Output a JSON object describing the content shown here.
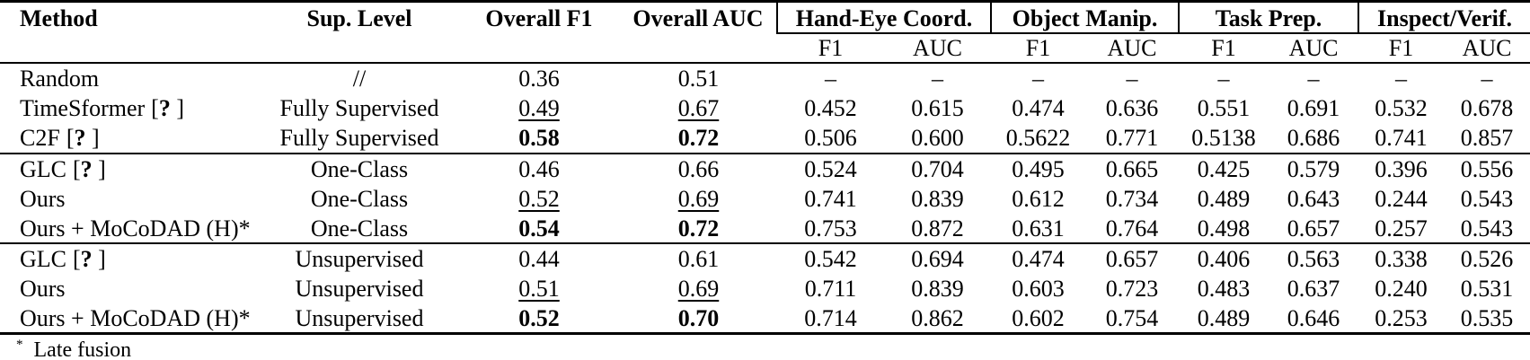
{
  "page": {
    "background_color": "#ffffff",
    "text_color": "#000000",
    "rule_color": "#000000"
  },
  "table": {
    "headers": {
      "method": "Method",
      "sup_level": "Sup. Level",
      "overall_f1": "Overall F1",
      "overall_auc": "Overall AUC"
    },
    "groups": [
      {
        "label": "Hand-Eye Coord."
      },
      {
        "label": "Object Manip."
      },
      {
        "label": "Task Prep."
      },
      {
        "label": "Inspect/Verif."
      }
    ],
    "subheaders": [
      "F1",
      "AUC",
      "F1",
      "AUC",
      "F1",
      "AUC",
      "F1",
      "AUC"
    ],
    "cite_marker": "?",
    "sections": [
      {
        "rows": [
          {
            "method": "Random",
            "cite": false,
            "sup_level": "//",
            "overall_f1": "0.36",
            "of1_style": "normal",
            "overall_auc": "0.51",
            "oauc_style": "normal",
            "values": [
              "–",
              "–",
              "–",
              "–",
              "–",
              "–",
              "–",
              "–"
            ]
          },
          {
            "method": "TimeSformer",
            "cite": true,
            "sup_level": "Fully Supervised",
            "overall_f1": "0.49",
            "of1_style": "underline",
            "overall_auc": "0.67",
            "oauc_style": "underline",
            "values": [
              "0.452",
              "0.615",
              "0.474",
              "0.636",
              "0.551",
              "0.691",
              "0.532",
              "0.678"
            ]
          },
          {
            "method": "C2F",
            "cite": true,
            "sup_level": "Fully Supervised",
            "overall_f1": "0.58",
            "of1_style": "bold",
            "overall_auc": "0.72",
            "oauc_style": "bold",
            "values": [
              "0.506",
              "0.600",
              "0.5622",
              "0.771",
              "0.5138",
              "0.686",
              "0.741",
              "0.857"
            ]
          }
        ]
      },
      {
        "rows": [
          {
            "method": "GLC",
            "cite": true,
            "sup_level": "One-Class",
            "overall_f1": "0.46",
            "of1_style": "normal",
            "overall_auc": "0.66",
            "oauc_style": "normal",
            "values": [
              "0.524",
              "0.704",
              "0.495",
              "0.665",
              "0.425",
              "0.579",
              "0.396",
              "0.556"
            ]
          },
          {
            "method": "Ours",
            "cite": false,
            "sup_level": "One-Class",
            "overall_f1": "0.52",
            "of1_style": "underline",
            "overall_auc": "0.69",
            "oauc_style": "underline",
            "values": [
              "0.741",
              "0.839",
              "0.612",
              "0.734",
              "0.489",
              "0.643",
              "0.244",
              "0.543"
            ]
          },
          {
            "method": "Ours + MoCoDAD (H)*",
            "cite": false,
            "sup_level": "One-Class",
            "overall_f1": "0.54",
            "of1_style": "bold",
            "overall_auc": "0.72",
            "oauc_style": "bold",
            "values": [
              "0.753",
              "0.872",
              "0.631",
              "0.764",
              "0.498",
              "0.657",
              "0.257",
              "0.543"
            ]
          }
        ]
      },
      {
        "rows": [
          {
            "method": "GLC",
            "cite": true,
            "sup_level": "Unsupervised",
            "overall_f1": "0.44",
            "of1_style": "normal",
            "overall_auc": "0.61",
            "oauc_style": "normal",
            "values": [
              "0.542",
              "0.694",
              "0.474",
              "0.657",
              "0.406",
              "0.563",
              "0.338",
              "0.526"
            ]
          },
          {
            "method": "Ours",
            "cite": false,
            "sup_level": "Unsupervised",
            "overall_f1": "0.51",
            "of1_style": "underline",
            "overall_auc": "0.69",
            "oauc_style": "underline",
            "values": [
              "0.711",
              "0.839",
              "0.603",
              "0.723",
              "0.483",
              "0.637",
              "0.240",
              "0.531"
            ]
          },
          {
            "method": "Ours + MoCoDAD (H)*",
            "cite": false,
            "sup_level": "Unsupervised",
            "overall_f1": "0.52",
            "of1_style": "bold",
            "overall_auc": "0.70",
            "oauc_style": "bold",
            "values": [
              "0.714",
              "0.862",
              "0.602",
              "0.754",
              "0.489",
              "0.646",
              "0.253",
              "0.535"
            ]
          }
        ]
      }
    ]
  },
  "footnote": {
    "marker": "*",
    "text": "Late fusion"
  }
}
